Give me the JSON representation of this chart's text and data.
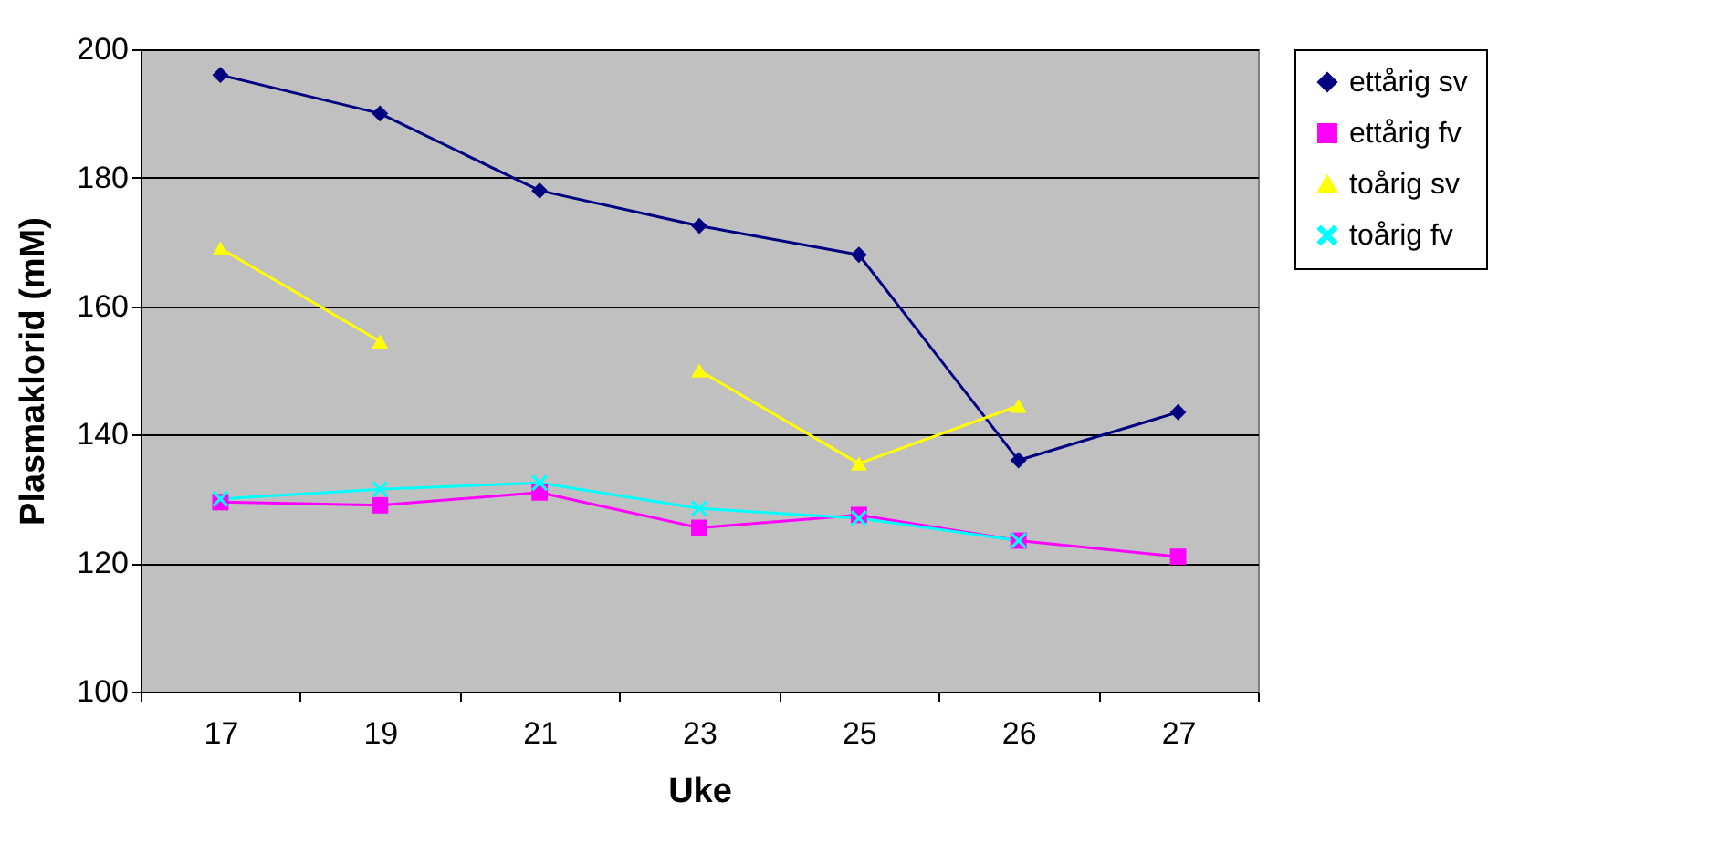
{
  "chart_data": {
    "type": "line",
    "xlabel": "Uke",
    "ylabel": "Plasmaklorid (mM)",
    "categories": [
      "17",
      "19",
      "21",
      "23",
      "25",
      "26",
      "27"
    ],
    "series": [
      {
        "name": "ettårig sv",
        "color": "#000080",
        "marker": "diamond",
        "values": [
          196,
          190,
          178,
          172.5,
          168,
          136,
          143.5
        ]
      },
      {
        "name": "ettårig fv",
        "color": "#ff00ff",
        "marker": "square",
        "values": [
          129.5,
          129,
          131,
          125.5,
          127.5,
          123.5,
          121
        ]
      },
      {
        "name": "toårig sv",
        "color": "#ffff00",
        "marker": "triangle",
        "values": [
          169,
          154.5,
          null,
          150,
          135.5,
          144.5,
          null
        ]
      },
      {
        "name": "toårig fv",
        "color": "#00ffff",
        "marker": "cross",
        "values": [
          130,
          131.5,
          132.5,
          128.5,
          127,
          123.5,
          null
        ]
      }
    ],
    "ylim": [
      100,
      200
    ],
    "yticks": [
      100,
      120,
      140,
      160,
      180,
      200
    ],
    "grid": "y",
    "legend": "right"
  }
}
